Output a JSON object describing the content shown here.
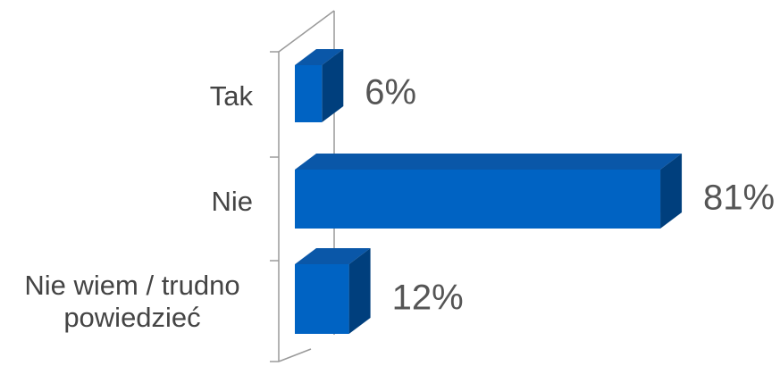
{
  "chart_data": {
    "type": "bar",
    "orientation": "horizontal",
    "style": "3d",
    "categories": [
      "Tak",
      "Nie",
      "Nie wiem / trudno powiedzieć"
    ],
    "category_lines": [
      [
        "Tak"
      ],
      [
        "Nie"
      ],
      [
        "Nie wiem / trudno",
        "powiedzieć"
      ]
    ],
    "values": [
      6,
      81,
      12
    ],
    "value_labels": [
      "6%",
      "81%",
      "12%"
    ],
    "xlim": [
      0,
      100
    ],
    "grid": false,
    "legend": "none",
    "colors": {
      "front": "#0063C3",
      "top": "#0A57A8",
      "side": "#003F7D",
      "axis": "#9A9A9A",
      "text": "#444444"
    }
  }
}
